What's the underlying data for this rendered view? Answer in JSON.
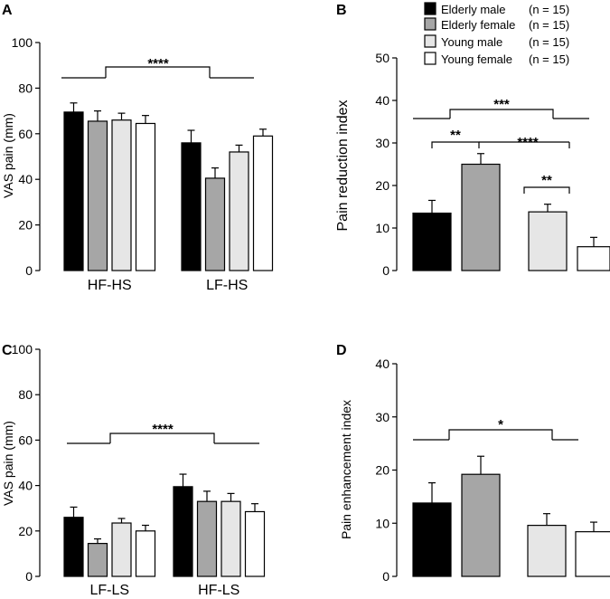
{
  "colors": {
    "elderly_male": "#000000",
    "elderly_female": "#a6a6a6",
    "young_male": "#e6e6e6",
    "young_female": "#ffffff"
  },
  "legend": [
    {
      "label": "Elderly male",
      "n": "(n = 15)",
      "color_key": "elderly_male"
    },
    {
      "label": "Elderly female",
      "n": "(n = 15)",
      "color_key": "elderly_female"
    },
    {
      "label": "Young male",
      "n": "(n = 15)",
      "color_key": "young_male"
    },
    {
      "label": "Young female",
      "n": "(n = 15)",
      "color_key": "young_female"
    }
  ],
  "chart_data": [
    {
      "panel": "A",
      "type": "bar",
      "ylabel": "VAS pain (mm)",
      "ylim": [
        0,
        100
      ],
      "yticks": [
        0,
        20,
        40,
        60,
        80,
        100
      ],
      "categories": [
        "HF-HS",
        "LF-HS"
      ],
      "series": [
        {
          "name": "Elderly male",
          "values": [
            69.5,
            56
          ],
          "errors": [
            4,
            5.5
          ]
        },
        {
          "name": "Elderly female",
          "values": [
            65.5,
            40.5
          ],
          "errors": [
            4.5,
            4.5
          ]
        },
        {
          "name": "Young male",
          "values": [
            66,
            52
          ],
          "errors": [
            3,
            3
          ]
        },
        {
          "name": "Young female",
          "values": [
            64.5,
            59
          ],
          "errors": [
            3.5,
            3
          ]
        }
      ],
      "significance": [
        "****"
      ]
    },
    {
      "panel": "B",
      "type": "bar",
      "ylabel": "Pain reduction index",
      "ylim": [
        0,
        50
      ],
      "yticks": [
        0,
        10,
        20,
        30,
        40,
        50
      ],
      "categories": [
        "Elderly male",
        "Elderly female",
        "Young male",
        "Young female"
      ],
      "values": [
        13.5,
        25,
        13.8,
        5.6
      ],
      "errors": [
        3,
        2.5,
        1.8,
        2.2
      ],
      "significance": [
        "***",
        "**",
        "****",
        "**"
      ]
    },
    {
      "panel": "C",
      "type": "bar",
      "ylabel": "VAS pain (mm)",
      "ylim": [
        0,
        100
      ],
      "yticks": [
        0,
        20,
        40,
        60,
        80,
        100
      ],
      "categories": [
        "LF-LS",
        "HF-LS"
      ],
      "series": [
        {
          "name": "Elderly male",
          "values": [
            26,
            39.5
          ],
          "errors": [
            4.5,
            5.5
          ]
        },
        {
          "name": "Elderly female",
          "values": [
            14.5,
            33
          ],
          "errors": [
            2,
            4.5
          ]
        },
        {
          "name": "Young male",
          "values": [
            23.5,
            33
          ],
          "errors": [
            2,
            3.5
          ]
        },
        {
          "name": "Young female",
          "values": [
            20,
            28.5
          ],
          "errors": [
            2.5,
            3.5
          ]
        }
      ],
      "significance": [
        "****"
      ]
    },
    {
      "panel": "D",
      "type": "bar",
      "ylabel": "Pain enhancement index",
      "ylim": [
        0,
        40
      ],
      "yticks": [
        0,
        10,
        20,
        30,
        40
      ],
      "categories": [
        "Elderly male",
        "Elderly female",
        "Young male",
        "Young female"
      ],
      "values": [
        13.8,
        19.2,
        9.6,
        8.4
      ],
      "errors": [
        3.8,
        3.4,
        2.2,
        1.8
      ],
      "significance": [
        "*"
      ]
    }
  ]
}
